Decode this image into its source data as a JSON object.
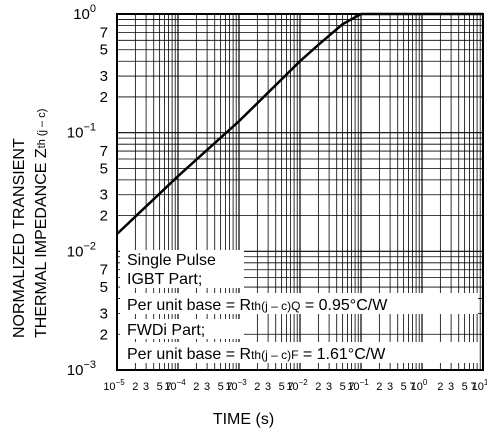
{
  "chart_data": {
    "type": "line",
    "x_scale": "log",
    "y_scale": "log",
    "xlim": [
      1e-05,
      10
    ],
    "ylim": [
      0.001,
      1
    ],
    "grid": true,
    "xlabel": "TIME  (s)",
    "ylabel_line1": "NORMALIZED TRANSIENT",
    "ylabel_line2_main": "THERMAL IMPEDANCE  Z",
    "ylabel_line2_sub": "th (j – c)",
    "y_major_ticks": [
      {
        "base": "10",
        "exp": "−3"
      },
      {
        "base": "10",
        "exp": "−2"
      },
      {
        "base": "10",
        "exp": "−1"
      },
      {
        "base": "10",
        "exp": "0"
      }
    ],
    "y_minor_tick_labels": [
      "2",
      "3",
      "5",
      "7"
    ],
    "x_decade_exponents": [
      "−5",
      "−4",
      "−3",
      "−2",
      "−1",
      "0",
      "1"
    ],
    "x_minor_tick_labels": [
      "2",
      "3",
      "5",
      "7"
    ],
    "series": [
      {
        "x": [
          1e-05,
          0.0001,
          0.001,
          0.01,
          0.02,
          0.05,
          0.1
        ],
        "y": [
          0.014,
          0.043,
          0.125,
          0.4,
          0.55,
          0.82,
          1.0
        ]
      }
    ],
    "annotations": [
      {
        "text": "Single Pulse"
      },
      {
        "text": "IGBT Part;"
      },
      {
        "text": "Per unit base = R",
        "sub": "th(j – c)Q",
        "tail": " = 0.95°C/W"
      },
      {
        "text": "FWDi Part;"
      },
      {
        "text": "Per unit base = R",
        "sub": "th(j – c)F",
        "tail": " = 1.61°C/W"
      }
    ]
  }
}
